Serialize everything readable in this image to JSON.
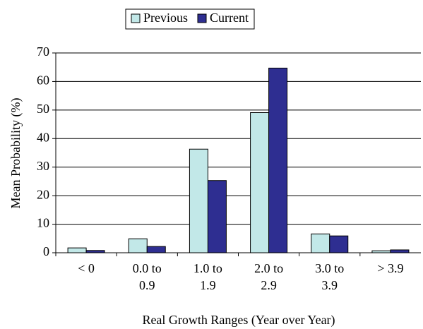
{
  "chart_data": {
    "type": "bar",
    "categories": [
      "< 0",
      "0.0 to\n0.9",
      "1.0 to\n1.9",
      "2.0 to\n2.9",
      "3.0 to\n3.9",
      "> 3.9"
    ],
    "series": [
      {
        "name": "Previous",
        "color": "#c2e8e8",
        "values": [
          1.7,
          4.9,
          36.3,
          49.1,
          6.6,
          0.7
        ]
      },
      {
        "name": "Current",
        "color": "#2e2e91",
        "values": [
          0.8,
          2.2,
          25.3,
          64.7,
          5.9,
          1.0
        ]
      }
    ],
    "ylim": [
      0,
      70
    ],
    "yticks": [
      0,
      10,
      20,
      30,
      40,
      50,
      60,
      70
    ],
    "grid": true,
    "y_label": "Mean Probability (%)",
    "x_label": "Real Growth Ranges (Year over Year)",
    "legend": "top"
  }
}
